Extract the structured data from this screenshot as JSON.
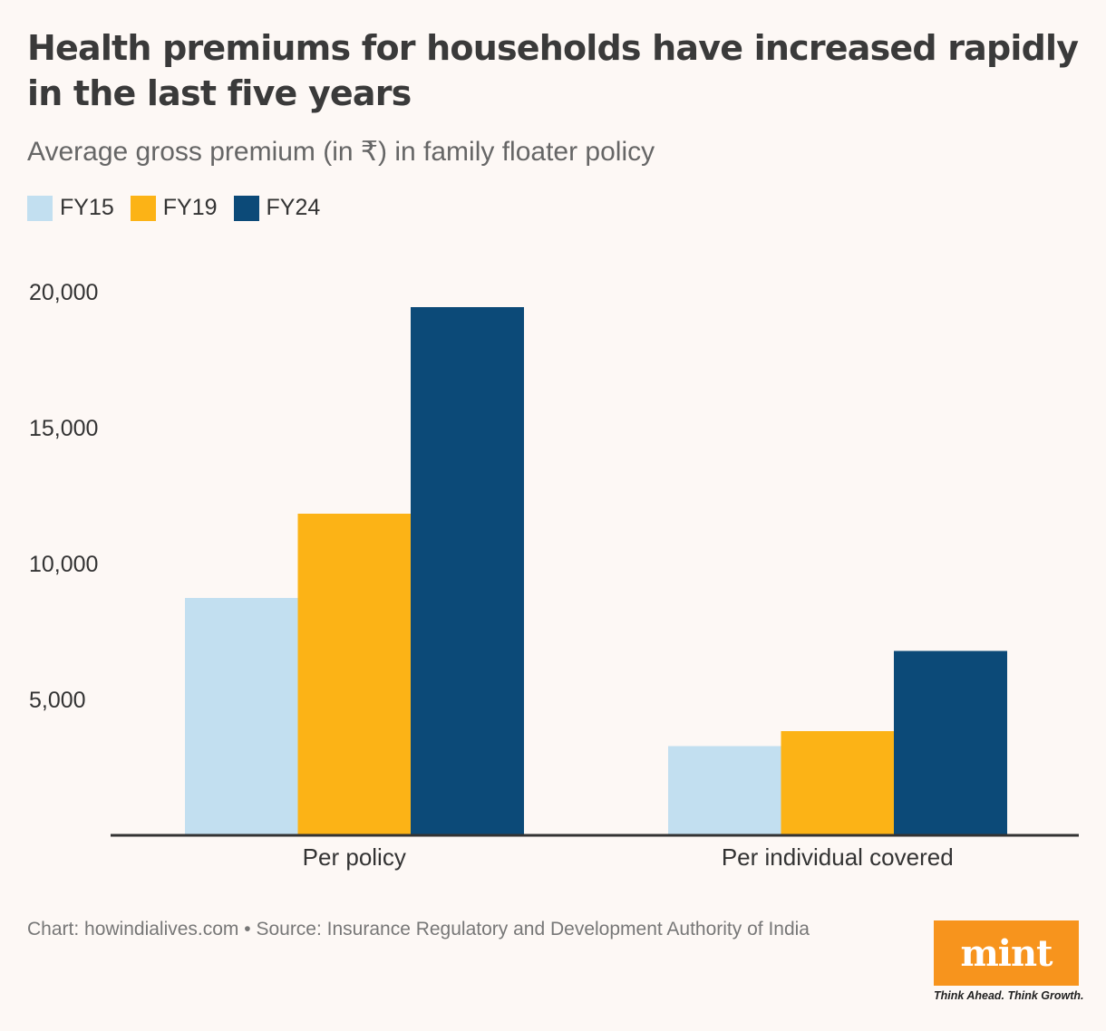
{
  "header": {
    "title": "Health premiums for households have increased rapidly in the last five years",
    "subtitle": "Average gross premium (in ₹) in family floater policy"
  },
  "legend": [
    {
      "label": "FY15",
      "color": "#c2dff0"
    },
    {
      "label": "FY19",
      "color": "#fcb316"
    },
    {
      "label": "FY24",
      "color": "#0c4a78"
    }
  ],
  "chart_data": {
    "type": "bar",
    "title": "Health premiums for households have increased rapidly in the last five years",
    "subtitle": "Average gross premium (in ₹) in family floater policy",
    "categories": [
      "Per policy",
      "Per individual covered"
    ],
    "series": [
      {
        "name": "FY15",
        "values": [
          8700,
          3250
        ],
        "color": "#c2dff0"
      },
      {
        "name": "FY19",
        "values": [
          11800,
          3800
        ],
        "color": "#fcb316"
      },
      {
        "name": "FY24",
        "values": [
          19400,
          6750
        ],
        "color": "#0c4a78"
      }
    ],
    "yticks": [
      5000,
      10000,
      15000,
      20000
    ],
    "ytick_labels": [
      "5,000",
      "10,000",
      "15,000",
      "20,000"
    ],
    "ylim": [
      0,
      20000
    ],
    "xlabel": "",
    "ylabel": "",
    "grid": false,
    "legend_position": "top-left"
  },
  "footer": {
    "text": "Chart: howindialives.com • Source: Insurance Regulatory and Development Authority of India"
  },
  "logo": {
    "text": "mint",
    "tagline": "Think Ahead. Think Growth."
  }
}
